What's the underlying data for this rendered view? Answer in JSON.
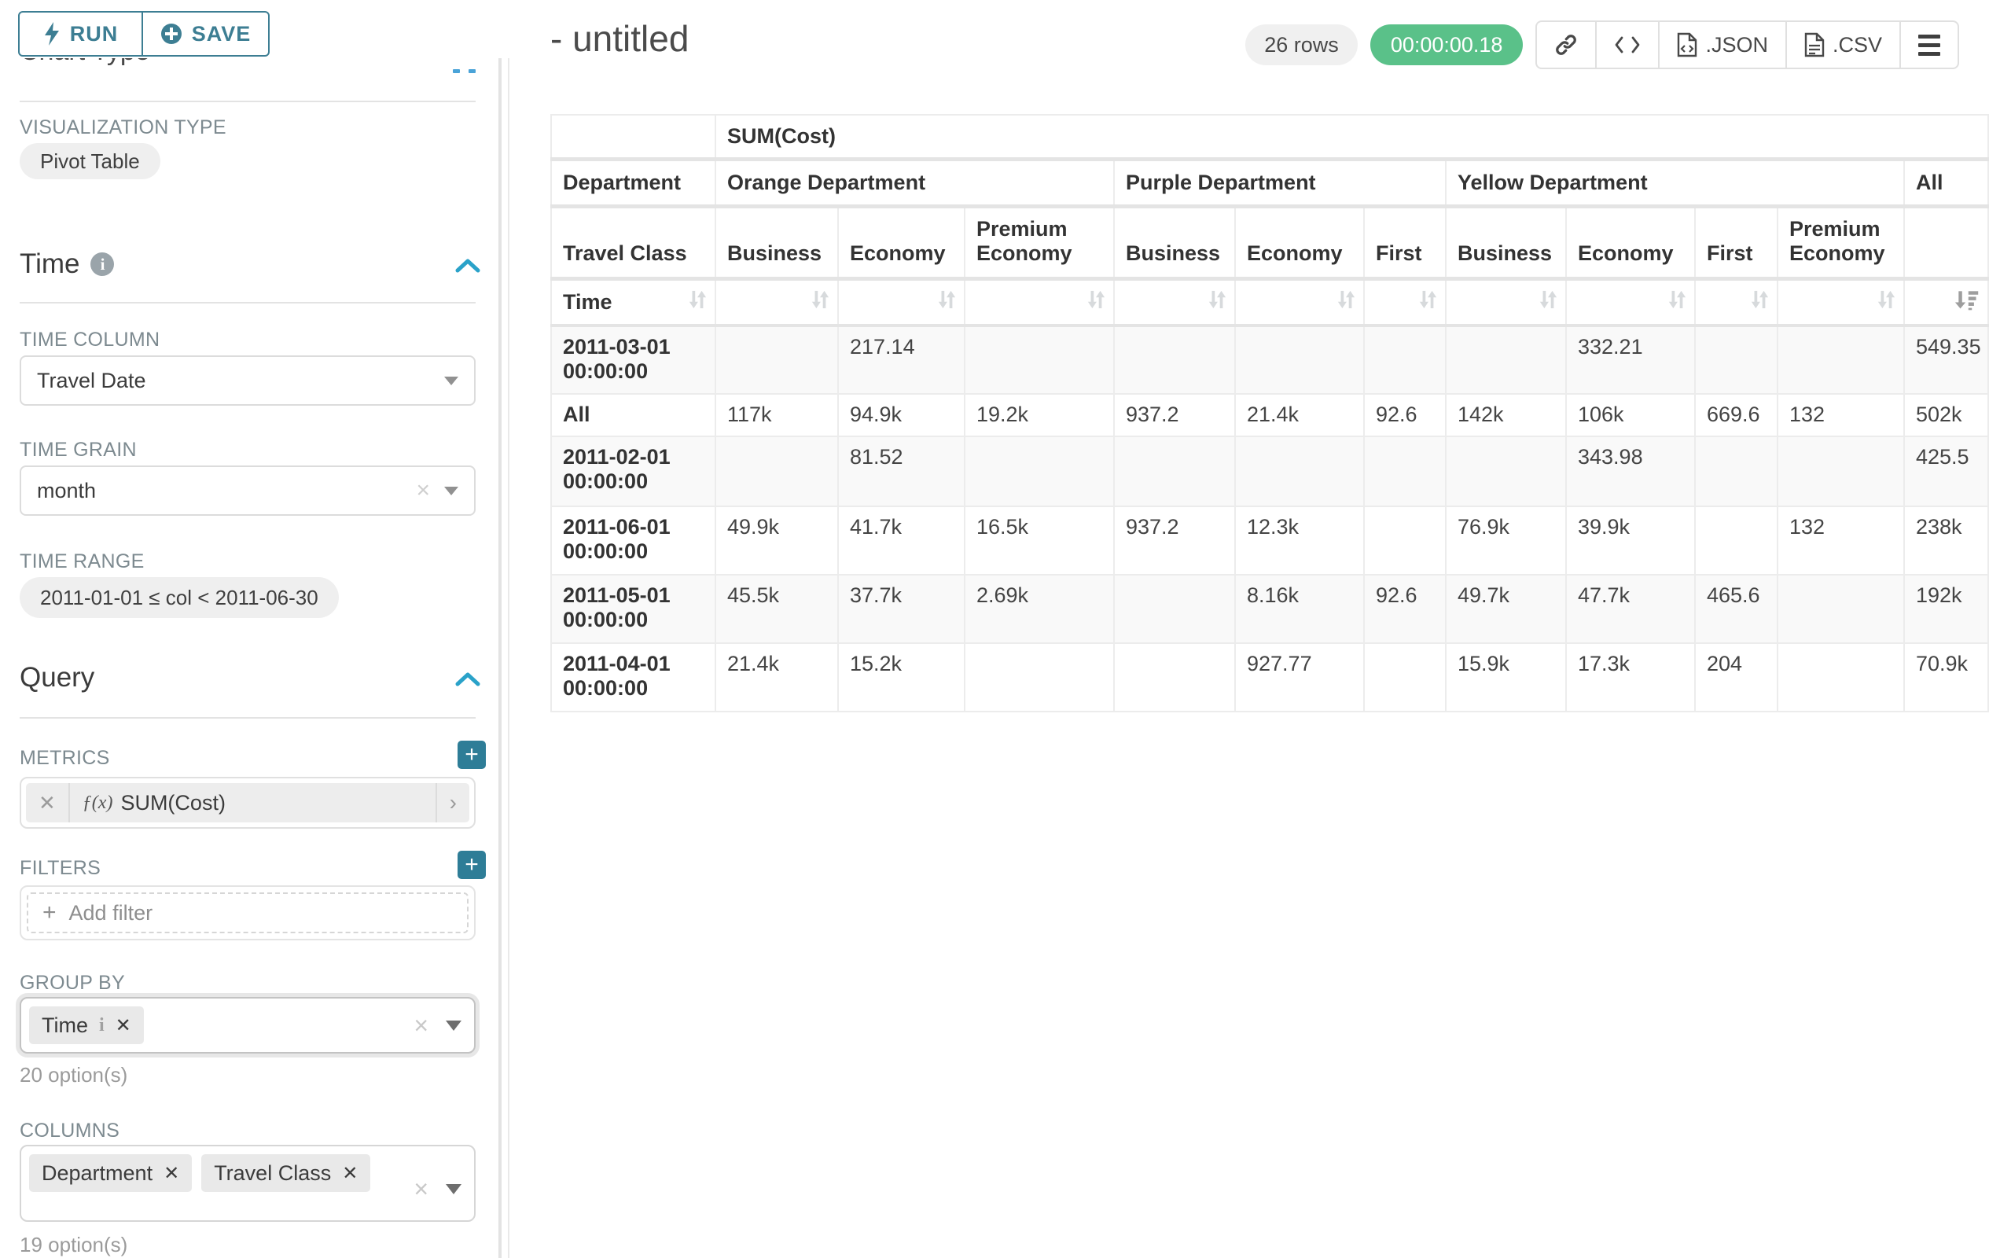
{
  "colors": {
    "accent_teal": "#3d7e93",
    "plus_teal": "#2e7d97",
    "caret_blue": "#2aa2c9",
    "success_green": "#5ac189",
    "badge_gray": "#f0f0f0"
  },
  "sidebar": {
    "run_label": "RUN",
    "save_label": "SAVE",
    "chart_type_heading": "Chart Type",
    "visualization_type_label": "VISUALIZATION TYPE",
    "visualization_type_value": "Pivot Table",
    "time": {
      "heading": "Time",
      "time_column_label": "TIME COLUMN",
      "time_column_value": "Travel Date",
      "time_grain_label": "TIME GRAIN",
      "time_grain_value": "month",
      "time_range_label": "TIME RANGE",
      "time_range_value": "2011-01-01 ≤ col < 2011-06-30"
    },
    "query": {
      "heading": "Query",
      "metrics_label": "METRICS",
      "metric_fx": "ƒ(x)",
      "metric_chip": "SUM(Cost)",
      "filters_label": "FILTERS",
      "add_filter_label": "Add filter",
      "group_by_label": "GROUP BY",
      "group_by_chips": [
        "Time"
      ],
      "group_by_options": "20 option(s)",
      "columns_label": "COLUMNS",
      "columns_chips": [
        "Department",
        "Travel Class"
      ],
      "columns_options": "19 option(s)"
    }
  },
  "header": {
    "title": "- untitled",
    "rows_badge": "26 rows",
    "timer": "00:00:00.18",
    "json_label": ".JSON",
    "csv_label": ".CSV",
    "icons": [
      "link-icon",
      "code-icon",
      "json-file-icon",
      "csv-file-icon",
      "hamburger-icon"
    ]
  },
  "chart_data": {
    "type": "table",
    "title": "SUM(Cost)",
    "corner_metric_row": "",
    "corner_department": "Department",
    "corner_travel_class": "Travel Class",
    "corner_time": "Time",
    "column_groups": [
      {
        "label": "Orange Department",
        "span": 3
      },
      {
        "label": "Purple Department",
        "span": 3
      },
      {
        "label": "Yellow Department",
        "span": 4
      },
      {
        "label": "All",
        "span": 1
      }
    ],
    "sub_columns": [
      "Business",
      "Economy",
      "Premium Economy",
      "Business",
      "Economy",
      "First",
      "Business",
      "Economy",
      "First",
      "Premium Economy",
      ""
    ],
    "sort_state": {
      "active_column": "All",
      "direction": "desc"
    },
    "rows": [
      {
        "label": "2011-03-01 00:00:00",
        "values": [
          "",
          "217.14",
          "",
          "",
          "",
          "",
          "",
          "332.21",
          "",
          "",
          "549.35"
        ]
      },
      {
        "label": "All",
        "values": [
          "117k",
          "94.9k",
          "19.2k",
          "937.2",
          "21.4k",
          "92.6",
          "142k",
          "106k",
          "669.6",
          "132",
          "502k"
        ]
      },
      {
        "label": "2011-02-01 00:00:00",
        "values": [
          "",
          "81.52",
          "",
          "",
          "",
          "",
          "",
          "343.98",
          "",
          "",
          "425.5"
        ]
      },
      {
        "label": "2011-06-01 00:00:00",
        "values": [
          "49.9k",
          "41.7k",
          "16.5k",
          "937.2",
          "12.3k",
          "",
          "76.9k",
          "39.9k",
          "",
          "132",
          "238k"
        ]
      },
      {
        "label": "2011-05-01 00:00:00",
        "values": [
          "45.5k",
          "37.7k",
          "2.69k",
          "",
          "8.16k",
          "92.6",
          "49.7k",
          "47.7k",
          "465.6",
          "",
          "192k"
        ]
      },
      {
        "label": "2011-04-01 00:00:00",
        "values": [
          "21.4k",
          "15.2k",
          "",
          "",
          "927.77",
          "",
          "15.9k",
          "17.3k",
          "204",
          "",
          "70.9k"
        ]
      }
    ]
  }
}
